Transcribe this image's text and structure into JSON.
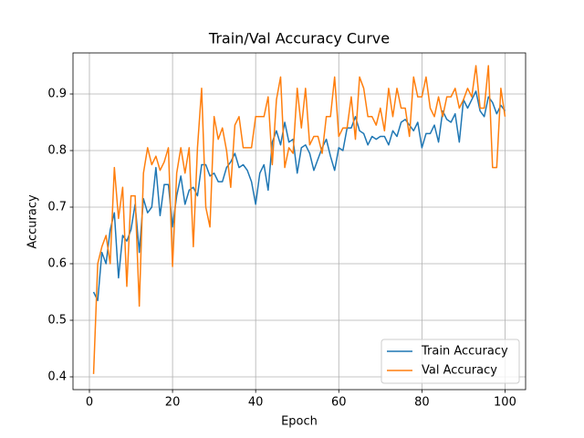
{
  "chart_data": {
    "type": "line",
    "title": "Train/Val Accuracy Curve",
    "x_label": "Epoch",
    "y_label": "Accuracy",
    "x": [
      1,
      2,
      3,
      4,
      5,
      6,
      7,
      8,
      9,
      10,
      11,
      12,
      13,
      14,
      15,
      16,
      17,
      18,
      19,
      20,
      21,
      22,
      23,
      24,
      25,
      26,
      27,
      28,
      29,
      30,
      31,
      32,
      33,
      34,
      35,
      36,
      37,
      38,
      39,
      40,
      41,
      42,
      43,
      44,
      45,
      46,
      47,
      48,
      49,
      50,
      51,
      52,
      53,
      54,
      55,
      56,
      57,
      58,
      59,
      60,
      61,
      62,
      63,
      64,
      65,
      66,
      67,
      68,
      69,
      70,
      71,
      72,
      73,
      74,
      75,
      76,
      77,
      78,
      79,
      80,
      81,
      82,
      83,
      84,
      85,
      86,
      87,
      88,
      89,
      90,
      91,
      92,
      93,
      94,
      95,
      96,
      97,
      98,
      99,
      100
    ],
    "series": [
      {
        "name": "Train Accuracy",
        "color": "#1f77b4",
        "values": [
          0.55,
          0.535,
          0.62,
          0.6,
          0.66,
          0.69,
          0.575,
          0.65,
          0.64,
          0.66,
          0.705,
          0.62,
          0.715,
          0.69,
          0.7,
          0.77,
          0.685,
          0.74,
          0.74,
          0.665,
          0.72,
          0.755,
          0.705,
          0.73,
          0.735,
          0.72,
          0.775,
          0.775,
          0.755,
          0.76,
          0.745,
          0.745,
          0.77,
          0.78,
          0.795,
          0.77,
          0.775,
          0.765,
          0.745,
          0.705,
          0.76,
          0.775,
          0.73,
          0.815,
          0.835,
          0.81,
          0.85,
          0.815,
          0.82,
          0.76,
          0.805,
          0.81,
          0.795,
          0.765,
          0.785,
          0.805,
          0.82,
          0.79,
          0.765,
          0.805,
          0.8,
          0.84,
          0.84,
          0.86,
          0.835,
          0.83,
          0.81,
          0.825,
          0.82,
          0.825,
          0.825,
          0.81,
          0.835,
          0.825,
          0.85,
          0.855,
          0.845,
          0.835,
          0.85,
          0.805,
          0.83,
          0.83,
          0.845,
          0.815,
          0.87,
          0.855,
          0.85,
          0.865,
          0.815,
          0.89,
          0.875,
          0.89,
          0.905,
          0.87,
          0.86,
          0.895,
          0.885,
          0.865,
          0.88,
          0.87
        ]
      },
      {
        "name": "Val Accuracy",
        "color": "#ff7f0e",
        "values": [
          0.405,
          0.6,
          0.63,
          0.65,
          0.6,
          0.77,
          0.68,
          0.735,
          0.56,
          0.72,
          0.72,
          0.525,
          0.76,
          0.805,
          0.775,
          0.79,
          0.765,
          0.78,
          0.805,
          0.595,
          0.76,
          0.805,
          0.76,
          0.805,
          0.63,
          0.805,
          0.91,
          0.7,
          0.665,
          0.86,
          0.82,
          0.84,
          0.8,
          0.735,
          0.845,
          0.86,
          0.805,
          0.805,
          0.805,
          0.86,
          0.86,
          0.86,
          0.895,
          0.775,
          0.89,
          0.93,
          0.77,
          0.805,
          0.795,
          0.91,
          0.84,
          0.91,
          0.81,
          0.825,
          0.825,
          0.795,
          0.86,
          0.86,
          0.93,
          0.825,
          0.84,
          0.84,
          0.895,
          0.82,
          0.93,
          0.91,
          0.86,
          0.86,
          0.845,
          0.875,
          0.835,
          0.91,
          0.86,
          0.91,
          0.875,
          0.875,
          0.825,
          0.93,
          0.895,
          0.895,
          0.93,
          0.875,
          0.86,
          0.895,
          0.86,
          0.895,
          0.895,
          0.91,
          0.875,
          0.89,
          0.91,
          0.895,
          0.95,
          0.875,
          0.875,
          0.95,
          0.77,
          0.77,
          0.91,
          0.86
        ]
      }
    ],
    "xlim": [
      -3.95,
      104.95
    ],
    "ylim": [
      0.3774,
      0.9726
    ],
    "xticks": [
      0,
      20,
      40,
      60,
      80,
      100
    ],
    "yticks": [
      0.4,
      0.5,
      0.6,
      0.7,
      0.8,
      0.9
    ],
    "grid": true,
    "legend": "lower right"
  }
}
